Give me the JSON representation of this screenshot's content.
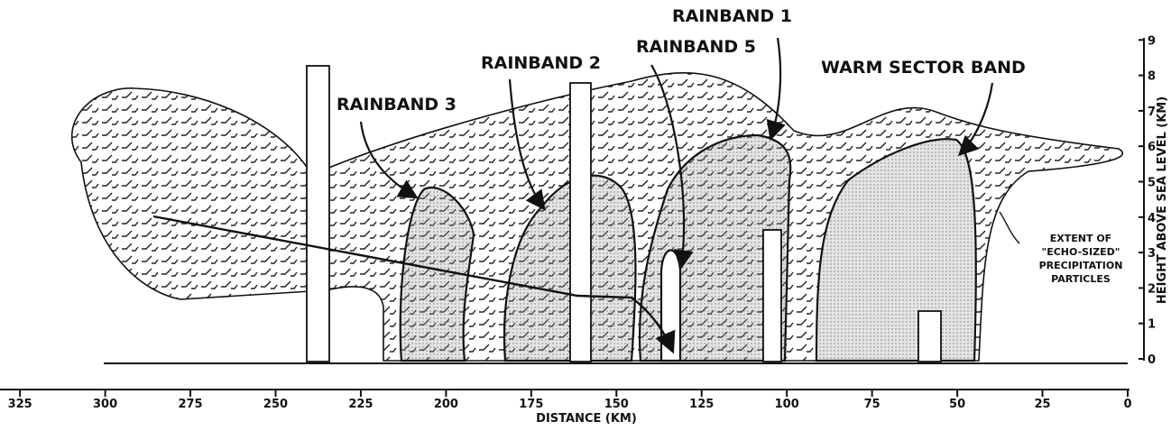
{
  "labels": [
    "RAINBAND 3",
    "RAINBAND 2",
    "RAINBAND 5",
    "RAINBAND 1",
    "WARM SECTOR BAND"
  ],
  "annotation": [
    "EXTENT OF",
    "\"ECHO-SIZED\"",
    "PRECIPITATION",
    "PARTICLES"
  ],
  "x_axis": {
    "label": "DISTANCE (KM)",
    "ticks": [
      325,
      300,
      275,
      250,
      225,
      200,
      175,
      150,
      125,
      100,
      75,
      50,
      25,
      0
    ]
  },
  "y_axis": {
    "label": "HEIGHT ABOVE SEA LEVEL (KM)",
    "ticks": [
      0,
      1,
      2,
      3,
      4,
      5,
      6,
      7,
      8,
      9
    ]
  }
}
